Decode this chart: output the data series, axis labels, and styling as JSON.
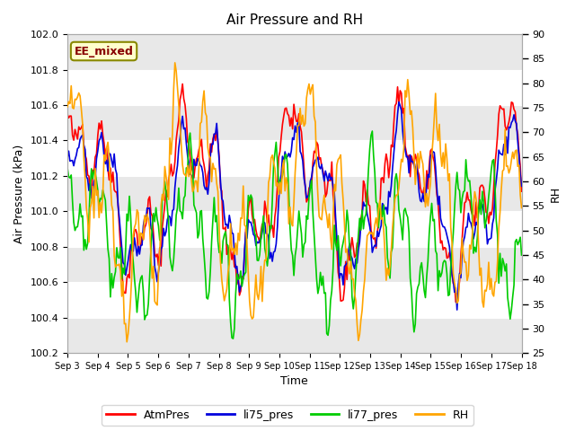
{
  "title": "Air Pressure and RH",
  "xlabel": "Time",
  "ylabel_left": "Air Pressure (kPa)",
  "ylabel_right": "RH",
  "ylim_left": [
    100.2,
    102.0
  ],
  "ylim_right": [
    25,
    90
  ],
  "yticks_left": [
    100.2,
    100.4,
    100.6,
    100.8,
    101.0,
    101.2,
    101.4,
    101.6,
    101.8,
    102.0
  ],
  "yticks_right": [
    25,
    30,
    35,
    40,
    45,
    50,
    55,
    60,
    65,
    70,
    75,
    80,
    85,
    90
  ],
  "xtick_labels": [
    "Sep 3",
    "Sep 4",
    "Sep 5",
    "Sep 6",
    "Sep 7",
    "Sep 8",
    "Sep 9",
    "Sep 10",
    "Sep 11",
    "Sep 12",
    "Sep 13",
    "Sep 14",
    "Sep 15",
    "Sep 16",
    "Sep 17",
    "Sep 18"
  ],
  "fig_bg_color": "#ffffff",
  "plot_bg_color": "#ffffff",
  "band_colors": [
    "#e8e8e8",
    "#ffffff"
  ],
  "annotation_text": "EE_mixed",
  "annotation_bg": "#ffffcc",
  "annotation_edge": "#888800",
  "annotation_text_color": "#880000",
  "legend_labels": [
    "AtmPres",
    "li75_pres",
    "li77_pres",
    "RH"
  ],
  "line_colors": {
    "AtmPres": "#ff0000",
    "li75_pres": "#0000dd",
    "li77_pres": "#00cc00",
    "RH": "#ffa500"
  },
  "line_width": 1.2,
  "n_points": 360,
  "figsize": [
    6.4,
    4.8
  ],
  "dpi": 100
}
